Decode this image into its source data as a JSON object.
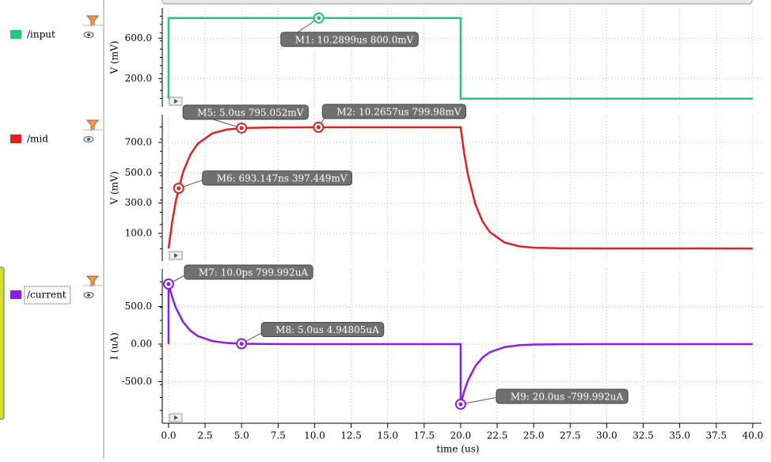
{
  "chart_data": [
    {
      "type": "line",
      "ylabel": "V (mV)",
      "xlim": [
        -0.43,
        40.6
      ],
      "ylim": [
        -80,
        900
      ],
      "yticks": [
        {
          "value": 200,
          "label": "200.0"
        },
        {
          "value": 600,
          "label": "600.0"
        }
      ],
      "series": [
        {
          "name": "/input",
          "color": "#22c77a",
          "x": [
            0,
            0,
            20,
            20,
            40
          ],
          "values": [
            0,
            800,
            800,
            0,
            0
          ]
        }
      ],
      "markers": [
        {
          "x": 10.2899,
          "value": 800,
          "label": "M1: 10.2899us 800.0mV"
        }
      ]
    },
    {
      "type": "line",
      "ylabel": "V (mV)",
      "xlim": [
        -0.43,
        40.6
      ],
      "ylim": [
        -83,
        883
      ],
      "yticks": [
        {
          "value": 100,
          "label": "100.0"
        },
        {
          "value": 300,
          "label": "300.0"
        },
        {
          "value": 500,
          "label": "500.0"
        },
        {
          "value": 700,
          "label": "700.0"
        }
      ],
      "series": [
        {
          "name": "/mid",
          "color": "#dd2222",
          "x": [
            0,
            0.25,
            0.5,
            1,
            1.5,
            2,
            3,
            4,
            5,
            7,
            10,
            20,
            20.25,
            20.5,
            21,
            21.5,
            22,
            23,
            24,
            25,
            27,
            40
          ],
          "values": [
            0,
            177,
            315,
            506,
            621,
            692,
            760,
            785,
            795,
            799,
            800,
            800,
            623,
            485,
            294,
            179,
            108,
            40,
            15,
            5,
            1,
            0
          ]
        }
      ],
      "markers": [
        {
          "x": 5.0,
          "value": 795.052,
          "label": "M5: 5.0us 795.052mV"
        },
        {
          "x": 10.2657,
          "value": 799.98,
          "label": "M2: 10.2657us 799.98mV"
        },
        {
          "x": 0.693147,
          "value": 397.449,
          "label": "M6: 693.147ns 397.449mV"
        }
      ]
    },
    {
      "type": "line",
      "ylabel": "I (uA)",
      "xlabel": "time (us)",
      "xlim": [
        -0.43,
        40.6
      ],
      "ylim": [
        -1053,
        1000
      ],
      "yticks": [
        {
          "value": -500,
          "label": "-500.0"
        },
        {
          "value": 0,
          "label": "0.00"
        },
        {
          "value": 500,
          "label": "500.0"
        }
      ],
      "xticks": [
        {
          "value": 0,
          "label": "0.0"
        },
        {
          "value": 2.5,
          "label": "2.5"
        },
        {
          "value": 5,
          "label": "5.0"
        },
        {
          "value": 7.5,
          "label": "7.5"
        },
        {
          "value": 10,
          "label": "10.0"
        },
        {
          "value": 12.5,
          "label": "12.5"
        },
        {
          "value": 15,
          "label": "15.0"
        },
        {
          "value": 17.5,
          "label": "17.5"
        },
        {
          "value": 20,
          "label": "20.0"
        },
        {
          "value": 22.5,
          "label": "22.5"
        },
        {
          "value": 25,
          "label": "25.0"
        },
        {
          "value": 27.5,
          "label": "27.5"
        },
        {
          "value": 30,
          "label": "30.0"
        },
        {
          "value": 32.5,
          "label": "32.5"
        },
        {
          "value": 35,
          "label": "35.0"
        },
        {
          "value": 37.5,
          "label": "37.5"
        },
        {
          "value": 40,
          "label": "40.0"
        }
      ],
      "series": [
        {
          "name": "/current",
          "color": "#8a1ee8",
          "x": [
            0,
            0,
            0.25,
            0.5,
            1,
            1.5,
            2,
            3,
            4,
            5,
            7,
            10,
            20,
            20,
            20.25,
            20.5,
            21,
            21.5,
            22,
            23,
            24,
            25,
            27,
            40
          ],
          "values": [
            0,
            800,
            623,
            485,
            294,
            178,
            108,
            40,
            15,
            5,
            1,
            0,
            0,
            -800,
            -623,
            -485,
            -294,
            -178,
            -108,
            -40,
            -15,
            -5,
            -1,
            0
          ]
        }
      ],
      "markers": [
        {
          "x": 1e-05,
          "value": 799.992,
          "label": "M7: 10.0ps 799.992uA"
        },
        {
          "x": 5.0,
          "value": 4.94805,
          "label": "M8: 5.0us 4.94805uA"
        },
        {
          "x": 20.0,
          "value": -799.992,
          "label": "M9: 20.0us -799.992uA"
        }
      ]
    }
  ]
}
